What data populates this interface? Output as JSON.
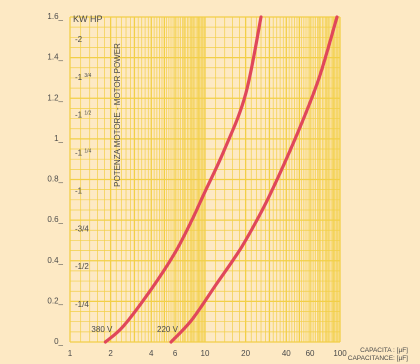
{
  "chart_data": {
    "type": "line",
    "header_units": "KW HP",
    "vertical_label": "POTENZA MOTORE - MOTOR POWER",
    "xlabel": [
      "CAPACITA : [µF]",
      "CAPACITANCE: [µF]"
    ],
    "x_scale": "log",
    "xlim": [
      1,
      100
    ],
    "ylim": [
      0,
      1.6
    ],
    "grid": true,
    "x_ticks": [
      {
        "value": 1,
        "label": "1"
      },
      {
        "value": 2,
        "label": "2"
      },
      {
        "value": 4,
        "label": "4"
      },
      {
        "value": 6,
        "label": "6"
      },
      {
        "value": 10,
        "label": "10"
      },
      {
        "value": 20,
        "label": "20"
      },
      {
        "value": 40,
        "label": "40"
      },
      {
        "value": 60,
        "label": "60"
      },
      {
        "value": 100,
        "label": "100"
      }
    ],
    "kw_ticks": [
      {
        "value": 0,
        "label": "0_"
      },
      {
        "value": 0.2,
        "label": "0.2_"
      },
      {
        "value": 0.4,
        "label": "0.4_"
      },
      {
        "value": 0.6,
        "label": "0.6_"
      },
      {
        "value": 0.8,
        "label": "0.8_"
      },
      {
        "value": 1.0,
        "label": "1_"
      },
      {
        "value": 1.2,
        "label": "1.2_"
      },
      {
        "value": 1.4,
        "label": "1.4_"
      },
      {
        "value": 1.6,
        "label": "1.6_"
      }
    ],
    "hp_ticks": [
      {
        "value": 0.186,
        "label": "-1/4"
      },
      {
        "value": 0.373,
        "label": "-1/2"
      },
      {
        "value": 0.559,
        "label": "-3/4"
      },
      {
        "value": 0.746,
        "label": "-1"
      },
      {
        "value": 0.932,
        "label": "-1 1/4"
      },
      {
        "value": 1.119,
        "label": "-1 1/2"
      },
      {
        "value": 1.305,
        "label": "-1 3/4"
      },
      {
        "value": 1.492,
        "label": "-2"
      }
    ],
    "series": [
      {
        "name": "380 V",
        "x": [
          1.83,
          2.5,
          4,
          6,
          8,
          10,
          14,
          20,
          26
        ],
        "y": [
          0.0,
          0.08,
          0.26,
          0.44,
          0.6,
          0.74,
          0.95,
          1.22,
          1.6
        ]
      },
      {
        "name": "220 V",
        "x": [
          5.6,
          8,
          12,
          16,
          20,
          30,
          50,
          70,
          95
        ],
        "y": [
          0.0,
          0.11,
          0.28,
          0.4,
          0.5,
          0.72,
          1.05,
          1.3,
          1.6
        ]
      }
    ],
    "line_color": "#e0475a",
    "grid_color": "#f2cf47",
    "background": "#fde9c4"
  }
}
